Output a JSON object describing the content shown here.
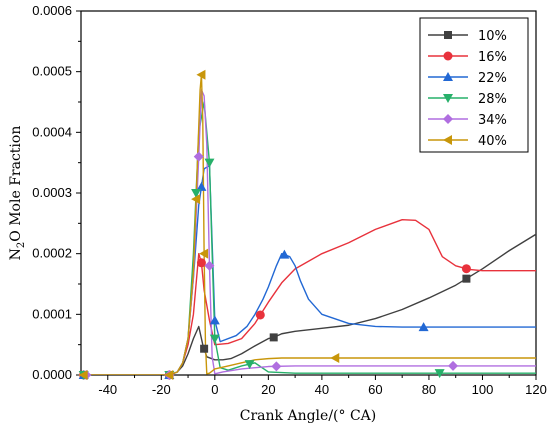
{
  "chart_data": {
    "type": "line",
    "xlabel": "Crank Angle/(° CA)",
    "ylabel_parts": {
      "main": "N",
      "sub": "2",
      "rest": "O Mole Fraction"
    },
    "xlim": [
      -50,
      120
    ],
    "ylim": [
      0,
      0.0006
    ],
    "xticks": [
      -40,
      -20,
      0,
      20,
      40,
      60,
      80,
      100,
      120
    ],
    "yticks": [
      0.0,
      0.0001,
      0.0002,
      0.0003,
      0.0004,
      0.0005,
      0.0006
    ],
    "ytick_labels": [
      "0.0000",
      "0.0001",
      "0.0002",
      "0.0003",
      "0.0004",
      "0.0005",
      "0.0006"
    ],
    "grid": false,
    "legend_position": "top-right",
    "series": [
      {
        "name": "10%",
        "color": "#404040",
        "marker": "square",
        "x": [
          -50,
          -20,
          -17,
          -14,
          -12,
          -10,
          -8,
          -6,
          -4.5,
          -3,
          0,
          3,
          6,
          10,
          15,
          20,
          22,
          25,
          30,
          40,
          50,
          60,
          70,
          80,
          90,
          100,
          110,
          120
        ],
        "y": [
          0,
          0,
          0,
          5e-06,
          1.5e-05,
          3.5e-05,
          6e-05,
          8e-05,
          5e-05,
          3e-05,
          2.5e-05,
          2.5e-05,
          2.7e-05,
          3.5e-05,
          4.8e-05,
          6e-05,
          6.2e-05,
          6.8e-05,
          7.2e-05,
          7.7e-05,
          8.2e-05,
          9.3e-05,
          0.000108,
          0.000127,
          0.000148,
          0.000175,
          0.000205,
          0.000232
        ],
        "marker_x": [
          -49,
          -17,
          -4,
          22,
          94
        ]
      },
      {
        "name": "16%",
        "color": "#e8323c",
        "marker": "circle",
        "x": [
          -50,
          -20,
          -17,
          -14,
          -12,
          -10,
          -8,
          -6,
          -5,
          -4,
          -2,
          0,
          5,
          10,
          15,
          20,
          25,
          30,
          40,
          50,
          60,
          70,
          75,
          80,
          85,
          90,
          95,
          100,
          120
        ],
        "y": [
          0,
          0,
          0,
          5e-06,
          2e-05,
          5e-05,
          0.0001,
          0.0002,
          0.000185,
          0.00014,
          9e-05,
          5e-05,
          5.2e-05,
          6e-05,
          8.5e-05,
          0.00012,
          0.000152,
          0.000175,
          0.0002,
          0.000218,
          0.00024,
          0.000256,
          0.000255,
          0.00024,
          0.000195,
          0.00018,
          0.000174,
          0.000172,
          0.000172
        ],
        "marker_x": [
          -49,
          -17,
          -5,
          17,
          94
        ]
      },
      {
        "name": "22%",
        "color": "#2268d4",
        "marker": "triangle-up",
        "x": [
          -50,
          -20,
          -17,
          -14,
          -12,
          -10,
          -8,
          -6,
          -4,
          -2,
          0,
          2,
          8,
          12,
          15,
          18,
          20,
          23,
          25,
          28,
          30,
          32,
          35,
          40,
          50,
          60,
          70,
          80,
          120
        ],
        "y": [
          0,
          0,
          0,
          5e-06,
          2e-05,
          6e-05,
          0.00016,
          0.00028,
          0.00034,
          0.000345,
          9e-05,
          5.5e-05,
          6.5e-05,
          8e-05,
          0.0001,
          0.000125,
          0.000145,
          0.00018,
          0.0002,
          0.000195,
          0.00018,
          0.000155,
          0.000125,
          0.0001,
          8.5e-05,
          8e-05,
          7.9e-05,
          7.9e-05,
          7.9e-05
        ],
        "marker_x": [
          -49,
          -17,
          -5,
          0,
          26,
          78
        ]
      },
      {
        "name": "28%",
        "color": "#27b06a",
        "marker": "triangle-down",
        "x": [
          -50,
          -20,
          -17,
          -14,
          -12,
          -10,
          -8,
          -6,
          -4,
          -2,
          -1,
          0,
          2,
          5,
          10,
          15,
          20,
          30,
          40,
          120
        ],
        "y": [
          0,
          0,
          0,
          5e-06,
          2e-05,
          6e-05,
          0.0002,
          0.0004,
          0.00045,
          0.00035,
          0.0002,
          6e-05,
          1.2e-05,
          8e-06,
          1.5e-05,
          2e-05,
          5e-06,
          3e-06,
          3e-06,
          3e-06
        ],
        "marker_x": [
          -49,
          -17,
          -7,
          -2,
          0,
          13,
          84
        ]
      },
      {
        "name": "34%",
        "color": "#b06ee0",
        "marker": "diamond",
        "x": [
          -50,
          -20,
          -17,
          -14,
          -12,
          -10,
          -8,
          -6,
          -5,
          -4,
          -3,
          -2,
          -1,
          0,
          3,
          10,
          20,
          30,
          120
        ],
        "y": [
          0,
          0,
          0,
          5e-06,
          2e-05,
          6e-05,
          0.00016,
          0.00036,
          0.00047,
          0.00046,
          0.00038,
          0.00018,
          3e-05,
          2e-06,
          5e-06,
          1e-05,
          1.4e-05,
          1.5e-05,
          1.5e-05
        ],
        "marker_x": [
          -48,
          -17,
          -6,
          -2,
          23,
          89
        ]
      },
      {
        "name": "40%",
        "color": "#c8960a",
        "marker": "triangle-left",
        "x": [
          -50,
          -20,
          -17,
          -14,
          -12,
          -10,
          -8,
          -6.5,
          -5.5,
          -5,
          -4.5,
          -4,
          -3.5,
          -3,
          -2,
          0,
          5,
          10,
          15,
          20,
          25,
          30,
          120
        ],
        "y": [
          0,
          0,
          0,
          5e-06,
          2e-05,
          6e-05,
          0.00017,
          0.00035,
          0.00047,
          0.000495,
          0.00042,
          0.0002,
          5e-05,
          2e-06,
          3e-06,
          1e-05,
          1.5e-05,
          2e-05,
          2.5e-05,
          2.7e-05,
          2.8e-05,
          2.8e-05,
          2.8e-05
        ],
        "marker_x": [
          -49,
          -17,
          -7,
          -5,
          -4,
          45
        ]
      }
    ]
  }
}
